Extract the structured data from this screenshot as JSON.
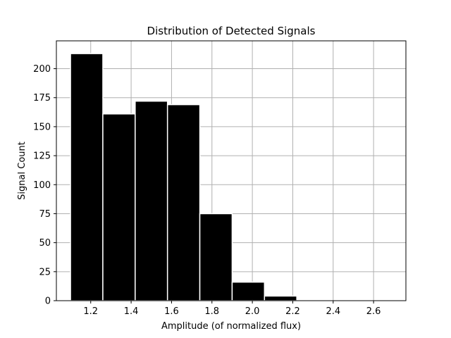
{
  "chart_data": {
    "type": "bar",
    "title": "Distribution of Detected Signals",
    "xlabel": "Amplitude (of normalized flux)",
    "ylabel": "Signal Count",
    "bins": [
      {
        "x0": 1.1,
        "x1": 1.26,
        "count": 213
      },
      {
        "x0": 1.26,
        "x1": 1.42,
        "count": 161
      },
      {
        "x0": 1.42,
        "x1": 1.58,
        "count": 172
      },
      {
        "x0": 1.58,
        "x1": 1.74,
        "count": 169
      },
      {
        "x0": 1.74,
        "x1": 1.9,
        "count": 75
      },
      {
        "x0": 1.9,
        "x1": 2.06,
        "count": 16
      },
      {
        "x0": 2.06,
        "x1": 2.22,
        "count": 4
      }
    ],
    "xlim": [
      1.03,
      2.76
    ],
    "ylim": [
      0,
      224
    ],
    "xticks": [
      1.2,
      1.4,
      1.6,
      1.8,
      2.0,
      2.2,
      2.4,
      2.6
    ],
    "xtick_labels": [
      "1.2",
      "1.4",
      "1.6",
      "1.8",
      "2.0",
      "2.2",
      "2.4",
      "2.6"
    ],
    "yticks": [
      0,
      25,
      50,
      75,
      100,
      125,
      150,
      175,
      200
    ],
    "ytick_labels": [
      "0",
      "25",
      "50",
      "75",
      "100",
      "125",
      "150",
      "175",
      "200"
    ],
    "grid": true,
    "colors": {
      "bar_fill": "#000000",
      "bar_edge": "#ffffff",
      "grid": "#b0b0b0",
      "axes": "#000000"
    }
  }
}
